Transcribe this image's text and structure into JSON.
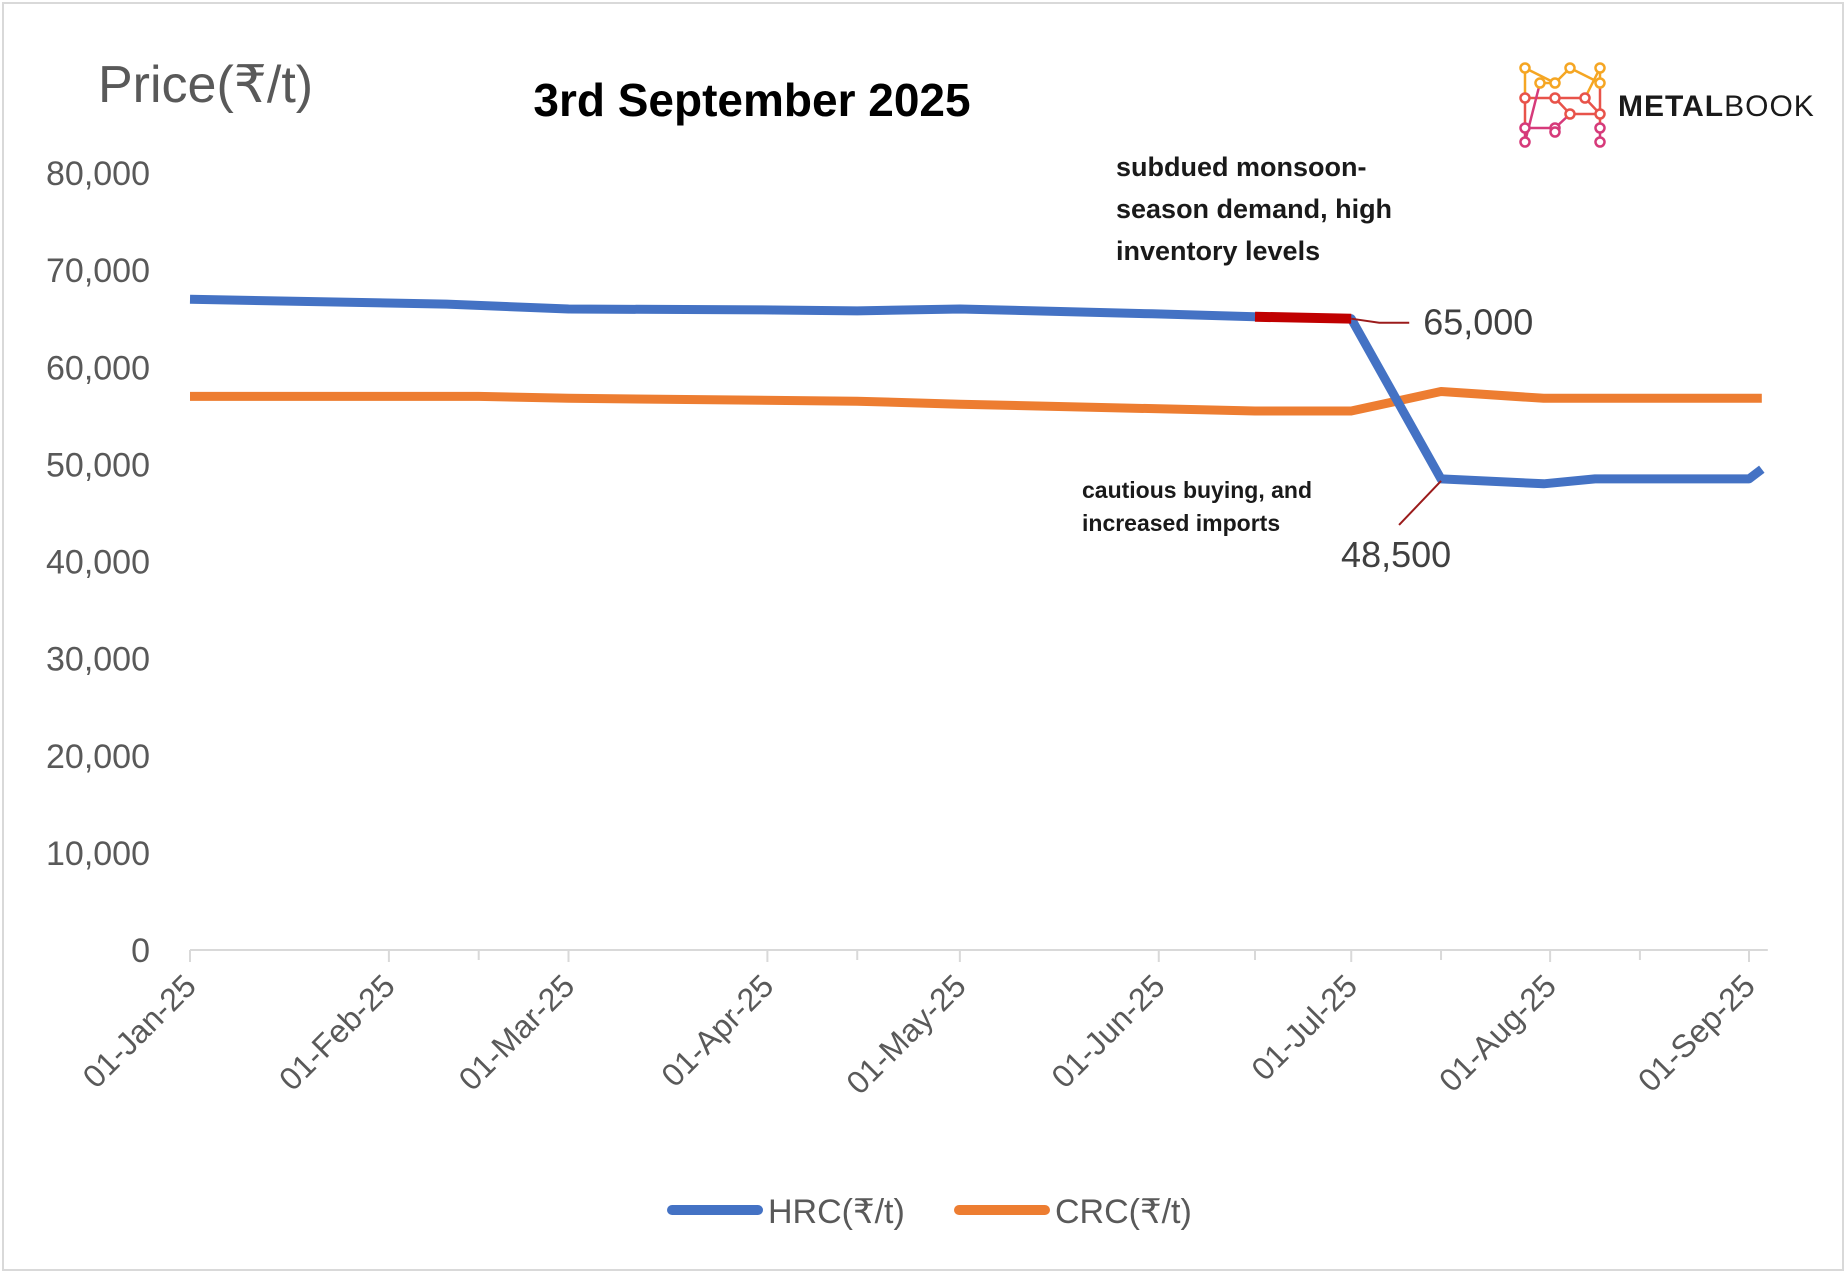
{
  "chart_data": {
    "type": "line",
    "title": "3rd September 2025",
    "ylabel": "Price(₹/t)",
    "xlabel": "",
    "ylim": [
      0,
      80000
    ],
    "yticks": [
      "0",
      "10,000",
      "20,000",
      "30,000",
      "40,000",
      "50,000",
      "60,000",
      "70,000",
      "80,000"
    ],
    "xticks": [
      "01-Jan-25",
      "01-Feb-25",
      "01-Mar-25",
      "01-Apr-25",
      "01-May-25",
      "01-Jun-25",
      "01-Jul-25",
      "01-Aug-25",
      "01-Sep-25"
    ],
    "xrange": [
      "2025-01-01",
      "2025-09-03"
    ],
    "grid": false,
    "legend_position": "bottom",
    "series": [
      {
        "name": "HRC(₹/t)",
        "color": "#4472C4",
        "points": [
          [
            "2025-01-01",
            67000
          ],
          [
            "2025-02-10",
            66500
          ],
          [
            "2025-03-01",
            66000
          ],
          [
            "2025-03-31",
            65900
          ],
          [
            "2025-04-15",
            65800
          ],
          [
            "2025-05-01",
            66000
          ],
          [
            "2025-05-31",
            65500
          ],
          [
            "2025-06-16",
            65200
          ],
          [
            "2025-07-01",
            65000
          ],
          [
            "2025-07-15",
            48500
          ],
          [
            "2025-07-31",
            48000
          ],
          [
            "2025-08-08",
            48500
          ],
          [
            "2025-09-01",
            48500
          ],
          [
            "2025-09-03",
            49500
          ]
        ]
      },
      {
        "name": "CRC(₹/t)",
        "color": "#ED7D31",
        "points": [
          [
            "2025-01-01",
            57000
          ],
          [
            "2025-02-15",
            57000
          ],
          [
            "2025-03-01",
            56800
          ],
          [
            "2025-04-15",
            56500
          ],
          [
            "2025-05-01",
            56200
          ],
          [
            "2025-06-16",
            55500
          ],
          [
            "2025-07-01",
            55500
          ],
          [
            "2025-07-15",
            57500
          ],
          [
            "2025-07-31",
            56800
          ],
          [
            "2025-09-03",
            56800
          ]
        ]
      }
    ],
    "highlight": {
      "color": "#C00000",
      "from": [
        "2025-06-16",
        65200
      ],
      "to": [
        "2025-07-01",
        65000
      ]
    },
    "data_labels": [
      {
        "text": "65,000",
        "date": "2025-07-01",
        "value": 65000
      },
      {
        "text": "48,500",
        "date": "2025-07-15",
        "value": 48500
      }
    ],
    "annotations": [
      {
        "lines": [
          "subdued monsoon-",
          "season demand, high",
          "inventory levels"
        ]
      },
      {
        "lines": [
          "cautious buying, and",
          "increased imports"
        ]
      }
    ]
  },
  "brand": {
    "logo_text_bold": "METAL",
    "logo_text_light": "BOOK",
    "logo_colors": [
      "#F5A623",
      "#E8534A",
      "#D63A7A"
    ]
  }
}
